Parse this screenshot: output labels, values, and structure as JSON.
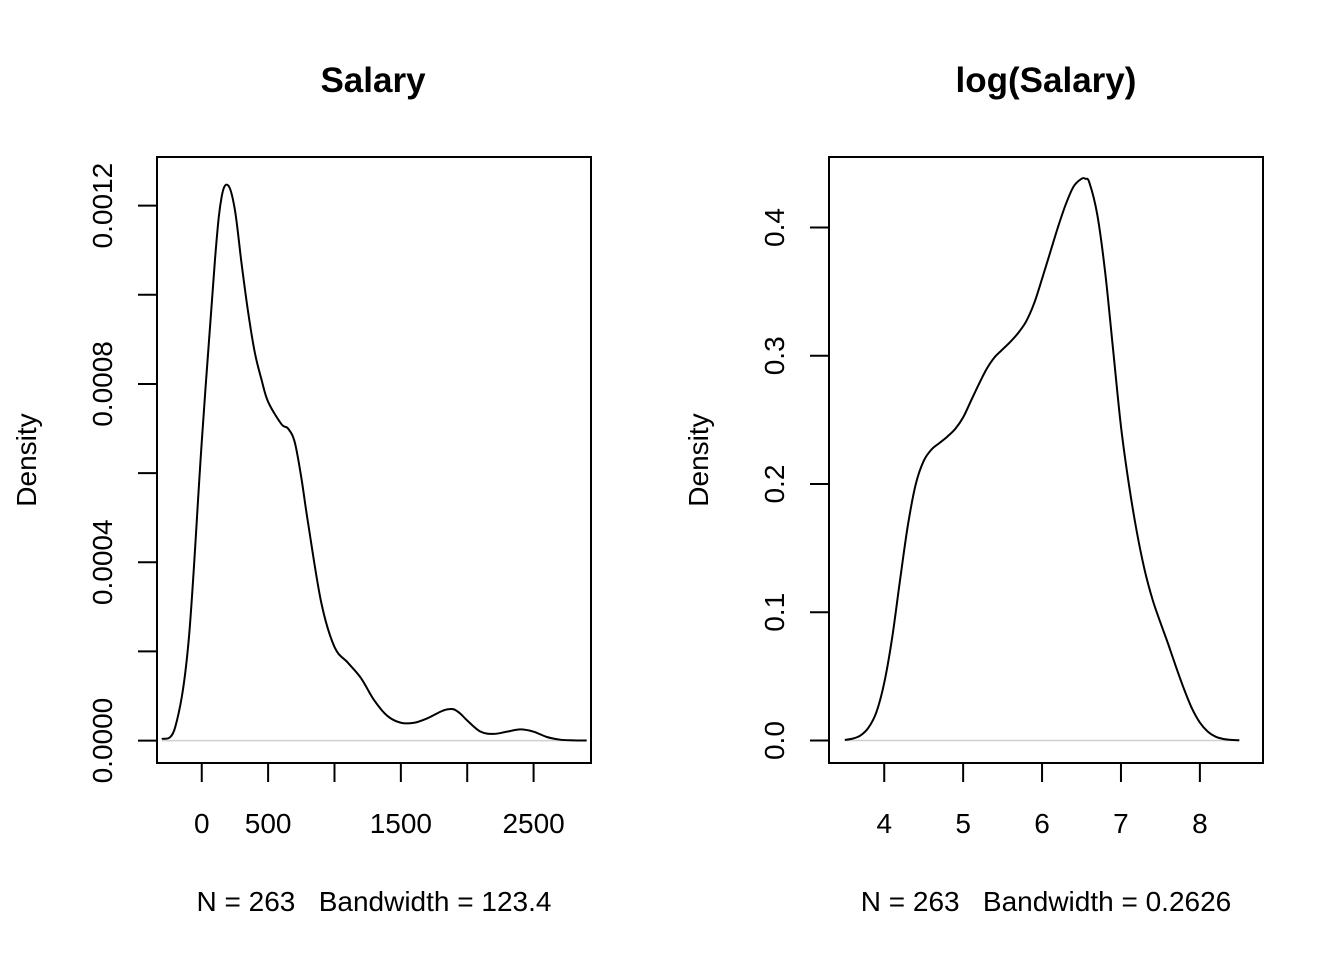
{
  "chart_data": [
    {
      "type": "line",
      "title": "Salary",
      "xlabel": "N = 263   Bandwidth = 123.4",
      "ylabel": "Density",
      "xlim": [
        -337.14,
        2932.54
      ],
      "ylim": [
        -5.03e-05,
        0.0013091
      ],
      "xticks": [
        0,
        500,
        1000,
        1500,
        2000,
        2500
      ],
      "xtick_labels": [
        "0",
        "500",
        "",
        "1500",
        "",
        "2500"
      ],
      "yticks": [
        0,
        0.0002,
        0.0004,
        0.0006,
        0.0008,
        0.001,
        0.0012
      ],
      "ytick_labels": [
        "0.0000",
        "",
        "0.0004",
        "",
        "0.0008",
        "",
        "0.0012"
      ],
      "zero_line": true,
      "grid": false,
      "x": [
        -300,
        -200,
        -100,
        0,
        100,
        150,
        200,
        250,
        300,
        350,
        400,
        450,
        500,
        600,
        650,
        700,
        750,
        800,
        900,
        1000,
        1100,
        1200,
        1300,
        1400,
        1500,
        1600,
        1700,
        1800,
        1850,
        1900,
        1950,
        2000,
        2100,
        2200,
        2300,
        2400,
        2500,
        2600,
        2700,
        2800,
        2900
      ],
      "y": [
        3e-06,
        3e-05,
        0.00022,
        0.00067,
        0.00108,
        0.00122,
        0.001245,
        0.00119,
        0.00107,
        0.00096,
        0.00087,
        0.00081,
        0.00076,
        0.00071,
        0.0007,
        0.00067,
        0.00059,
        0.00049,
        0.00031,
        0.00021,
        0.000175,
        0.00014,
        9e-05,
        5.5e-05,
        4e-05,
        4e-05,
        5e-05,
        6.5e-05,
        7e-05,
        7e-05,
        6e-05,
        4.5e-05,
        2e-05,
        1.5e-05,
        2e-05,
        2.5e-05,
        2e-05,
        8e-06,
        2e-06,
        5e-07,
        1e-07
      ]
    },
    {
      "type": "line",
      "title": "log(Salary)",
      "xlabel": "N = 263   Bandwidth = 0.2626",
      "ylabel": "Density",
      "xlim": [
        3.3,
        8.8
      ],
      "ylim": [
        -0.0175,
        0.455
      ],
      "xticks": [
        4,
        5,
        6,
        7,
        8
      ],
      "xtick_labels": [
        "4",
        "5",
        "6",
        "7",
        "8"
      ],
      "yticks": [
        0,
        0.1,
        0.2,
        0.3,
        0.4
      ],
      "ytick_labels": [
        "0.0",
        "0.1",
        "0.2",
        "0.3",
        "0.4"
      ],
      "zero_line": true,
      "grid": false,
      "x": [
        3.5,
        3.6,
        3.7,
        3.8,
        3.9,
        4.0,
        4.1,
        4.2,
        4.3,
        4.4,
        4.5,
        4.6,
        4.7,
        4.8,
        4.9,
        5.0,
        5.1,
        5.2,
        5.3,
        5.4,
        5.5,
        5.6,
        5.7,
        5.8,
        5.9,
        6.0,
        6.1,
        6.2,
        6.3,
        6.4,
        6.5,
        6.55,
        6.6,
        6.7,
        6.8,
        6.9,
        7.0,
        7.1,
        7.2,
        7.3,
        7.4,
        7.5,
        7.6,
        7.7,
        7.8,
        7.9,
        8.0,
        8.1,
        8.2,
        8.3,
        8.4,
        8.5
      ],
      "y": [
        0.0005,
        0.0015,
        0.004,
        0.01,
        0.022,
        0.045,
        0.08,
        0.125,
        0.168,
        0.2,
        0.218,
        0.227,
        0.232,
        0.237,
        0.243,
        0.252,
        0.265,
        0.278,
        0.29,
        0.299,
        0.305,
        0.311,
        0.318,
        0.327,
        0.341,
        0.36,
        0.38,
        0.4,
        0.418,
        0.432,
        0.438,
        0.438,
        0.435,
        0.41,
        0.365,
        0.305,
        0.245,
        0.2,
        0.163,
        0.133,
        0.11,
        0.092,
        0.075,
        0.057,
        0.04,
        0.025,
        0.014,
        0.007,
        0.003,
        0.0012,
        0.0005,
        0.0002
      ]
    }
  ]
}
